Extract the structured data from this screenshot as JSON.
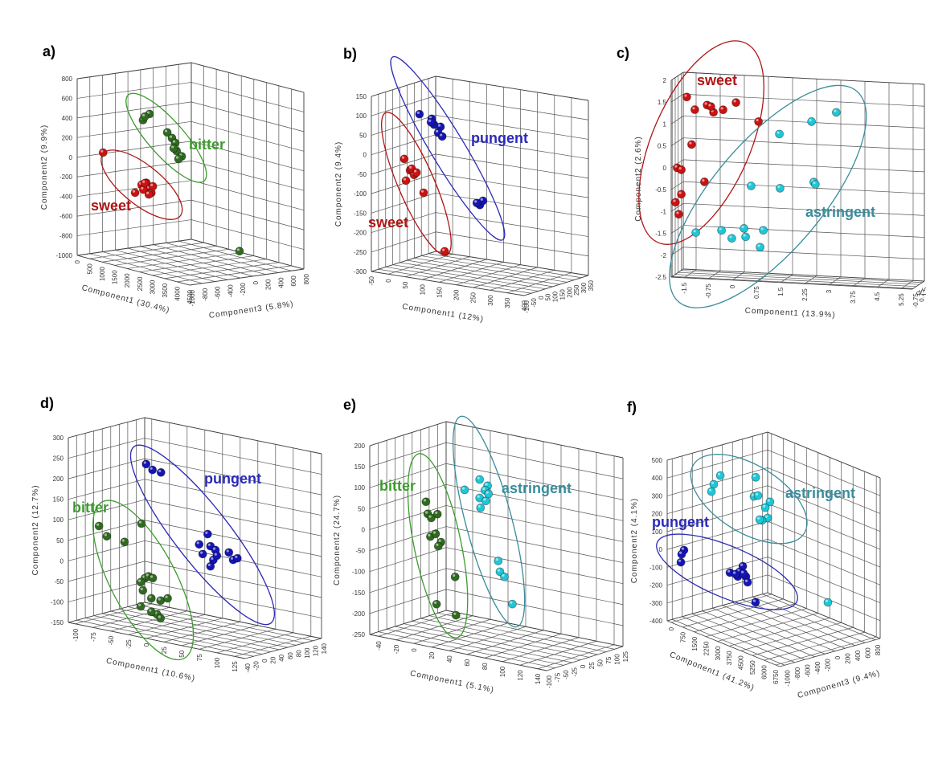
{
  "chart_data": [
    {
      "type": "scatter3d",
      "panel": "a)",
      "xlabel": "Component1 (30.4%)",
      "ylabel": "Component2 (9.9%)",
      "zlabel": "Component3 (5.8%)",
      "xlim": [
        0,
        4500
      ],
      "ylim": [
        -1000,
        800
      ],
      "zlim": [
        -1000,
        800
      ],
      "xticks": [
        0,
        500,
        1000,
        1500,
        2000,
        2500,
        3000,
        3500,
        4000,
        4500
      ],
      "yticks": [
        -1000,
        -800,
        -600,
        -400,
        -200,
        0,
        200,
        400,
        600,
        800
      ],
      "zticks": [
        -1000,
        -800,
        -600,
        -400,
        -200,
        0,
        200,
        400,
        600,
        800
      ],
      "series": [
        {
          "name": "bitter",
          "color": "#2f6b1f",
          "label_color": "#3d9b2e",
          "x": [
            350,
            610,
            420,
            1320,
            1510,
            1640,
            1700,
            1900,
            1770,
            1580,
            4210
          ],
          "y": [
            320,
            400,
            360,
            260,
            215,
            175,
            95,
            55,
            20,
            115,
            -755
          ],
          "z": [
            -100,
            -100,
            -100,
            -100,
            -100,
            -100,
            -100,
            -100,
            -100,
            -100,
            -100
          ]
        },
        {
          "name": "sweet",
          "color": "#cc1111",
          "label_color": "#b01515",
          "x": [
            580,
            1860,
            2120,
            2310,
            2440,
            2510,
            2190,
            2570,
            2410,
            2250
          ],
          "y": [
            70,
            -253,
            -154,
            -122,
            -172,
            -210,
            -199,
            -140,
            -233,
            -129
          ],
          "z": [
            -820,
            -820,
            -820,
            -820,
            -820,
            -820,
            -820,
            -820,
            -820,
            -820
          ]
        }
      ]
    },
    {
      "type": "scatter3d",
      "panel": "b)",
      "xlabel": "Component1 (12%)",
      "ylabel": "Component2 (9.4%)",
      "xlim": [
        -50,
        400
      ],
      "ylim": [
        -300,
        150
      ],
      "zlim": [
        -100,
        350
      ],
      "xticks": [
        -50,
        0,
        50,
        100,
        150,
        200,
        250,
        300,
        350,
        400
      ],
      "yticks": [
        -300,
        -250,
        -200,
        -150,
        -100,
        -50,
        0,
        50,
        100,
        150
      ],
      "zticks": [
        -100,
        -50,
        0,
        50,
        100,
        150,
        200,
        250,
        300,
        350
      ],
      "series": [
        {
          "name": "pungent",
          "color": "#1515b5",
          "label_color": "#2a2ab8",
          "x": [
            -3,
            33,
            40,
            59,
            31,
            52,
            64,
            175,
            184,
            166
          ],
          "y": [
            85,
            78,
            64,
            61,
            69,
            45,
            37,
            -124,
            -112,
            -120
          ],
          "z": [
            125,
            125,
            125,
            125,
            125,
            125,
            125,
            125,
            125,
            125
          ]
        },
        {
          "name": "sweet",
          "color": "#cc1111",
          "label_color": "#b01515",
          "x": [
            9,
            26,
            38,
            14,
            31,
            45,
            66,
            128
          ],
          "y": [
            -13,
            -40,
            -50,
            -68,
            -35,
            -43,
            -92,
            -234
          ],
          "z": [
            -10,
            -10,
            -10,
            -10,
            -10,
            -10,
            -10,
            -10
          ]
        }
      ]
    },
    {
      "type": "scatter3d",
      "panel": "c)",
      "xlabel": "Component1 (13.9%)",
      "ylabel": "Component2 (2.6%)",
      "xlim": [
        -1.9,
        5.6
      ],
      "ylim": [
        -2.5,
        2
      ],
      "zlim": [
        -1,
        2
      ],
      "xticks": [
        -1.5,
        -0.75,
        0,
        0.75,
        1.5,
        2.25,
        3,
        3.75,
        4.5,
        5.25
      ],
      "yticks": [
        -2.5,
        -2,
        -1.5,
        -1,
        -0.5,
        0,
        0.5,
        1,
        1.5,
        2
      ],
      "zticks": [
        -0.75,
        0,
        0.75,
        1.5
      ],
      "series": [
        {
          "name": "sweet",
          "color": "#cc1111",
          "label_color": "#b01515",
          "x": [
            -1.54,
            -1.29,
            -0.91,
            -0.71,
            -0.41,
            -0.01,
            -1.39,
            -1.84,
            -1.71,
            -0.99,
            -1.71,
            -1.89,
            -1.79,
            0.69,
            -0.79
          ],
          "y": [
            1.57,
            1.29,
            1.41,
            1.25,
            1.32,
            1.5,
            0.49,
            -0.06,
            -0.1,
            -0.35,
            -0.66,
            -0.85,
            -1.12,
            1.09,
            1.38
          ],
          "z": [
            0,
            0,
            0,
            0,
            0,
            0,
            0,
            0,
            0,
            0,
            0,
            0,
            0,
            0,
            0
          ]
        },
        {
          "name": "astringent",
          "color": "#1fc6d6",
          "label_color": "#3a8c9c",
          "x": [
            3.11,
            2.34,
            1.34,
            0.46,
            1.36,
            2.41,
            2.46,
            -1.26,
            -0.46,
            -0.14,
            0.24,
            0.29,
            0.84,
            0.74
          ],
          "y": [
            1.39,
            1.15,
            0.83,
            -0.39,
            -0.41,
            -0.23,
            -0.28,
            -1.52,
            -1.44,
            -1.61,
            -1.37,
            -1.56,
            -1.39,
            -1.78
          ],
          "z": [
            0,
            0,
            0,
            0,
            0,
            0,
            0,
            0,
            0,
            0,
            0,
            0,
            0,
            0
          ]
        }
      ]
    },
    {
      "type": "scatter3d",
      "panel": "d)",
      "xlabel": "Component1 (10.6%)",
      "ylabel": "Component2 (12.7%)",
      "xlim": [
        -110,
        140
      ],
      "ylim": [
        -150,
        300
      ],
      "zlim": [
        -40,
        140
      ],
      "xticks": [
        -100,
        -75,
        -50,
        -25,
        0,
        25,
        50,
        75,
        100,
        125
      ],
      "yticks": [
        -150,
        -100,
        -50,
        0,
        50,
        100,
        150,
        200,
        250,
        300
      ],
      "zticks": [
        -40,
        -20,
        0,
        20,
        40,
        60,
        80,
        100,
        120,
        140
      ],
      "series": [
        {
          "name": "pungent",
          "color": "#1515b5",
          "label_color": "#2a2ab8",
          "x": [
            -54,
            -45,
            -33,
            33,
            21,
            37,
            26,
            44,
            41,
            37,
            63,
            69,
            75,
            46
          ],
          "y": [
            231,
            220,
            218,
            91,
            62,
            63,
            40,
            56,
            31,
            14,
            57,
            41,
            47,
            43
          ],
          "z": [
            50,
            50,
            50,
            50,
            50,
            50,
            50,
            50,
            50,
            50,
            50,
            50,
            50,
            50
          ]
        },
        {
          "name": "bitter",
          "color": "#2f6b1f",
          "label_color": "#3d9b2e",
          "x": [
            -99,
            -88,
            -63,
            -39,
            -34,
            -29,
            -40,
            -23,
            -37,
            -25,
            -12,
            -2,
            -40,
            -17,
            -12,
            -25
          ],
          "y": [
            74,
            53,
            48,
            101,
            -30,
            -24,
            -42,
            -26,
            -61,
            -76,
            -77,
            -68,
            -101,
            -112,
            -120,
            -109
          ],
          "z": [
            14,
            14,
            14,
            14,
            14,
            14,
            14,
            14,
            14,
            14,
            14,
            14,
            14,
            14,
            14,
            14
          ]
        }
      ]
    },
    {
      "type": "scatter3d",
      "panel": "e)",
      "xlabel": "Component1 (5.1%)",
      "ylabel": "Component2 (24.7%)",
      "xlim": [
        -50,
        150
      ],
      "ylim": [
        -250,
        200
      ],
      "zlim": [
        -100,
        125
      ],
      "xticks": [
        -40,
        -20,
        0,
        20,
        40,
        60,
        80,
        100,
        120,
        140
      ],
      "yticks": [
        -250,
        -200,
        -150,
        -100,
        -50,
        0,
        50,
        100,
        150,
        200
      ],
      "zticks": [
        -100,
        -75,
        -50,
        -25,
        0,
        25,
        50,
        75,
        100,
        125
      ],
      "series": [
        {
          "name": "bitter",
          "color": "#2f6b1f",
          "label_color": "#3d9b2e",
          "x": [
            -21,
            -19,
            -15,
            -8,
            -16,
            -10,
            -4,
            -7,
            12,
            -9,
            13
          ],
          "y": [
            56,
            28,
            20,
            32,
            -25,
            -16,
            -33,
            -44,
            -109,
            -183,
            -200
          ],
          "z": [
            -10,
            -10,
            -10,
            -10,
            -10,
            -10,
            -10,
            -10,
            -10,
            -10,
            -10
          ]
        },
        {
          "name": "astringent",
          "color": "#1fc6d6",
          "label_color": "#3a8c9c",
          "x": [
            -3,
            14,
            23,
            20,
            14,
            21,
            15,
            24,
            35,
            37,
            42,
            51
          ],
          "y": [
            75,
            107,
            96,
            84,
            63,
            59,
            40,
            77,
            -78,
            -103,
            -113,
            -174
          ],
          "z": [
            57,
            57,
            57,
            57,
            57,
            57,
            57,
            57,
            57,
            57,
            57,
            57
          ]
        }
      ]
    },
    {
      "type": "scatter3d",
      "panel": "f)",
      "xlabel": "Component1 (41.2%)",
      "ylabel": "Component2 (4.1%)",
      "zlabel": "Component3 (9.4%)",
      "xlim": [
        -250,
        7000
      ],
      "ylim": [
        -400,
        500
      ],
      "zlim": [
        -1100,
        900
      ],
      "xticks": [
        0,
        750,
        1500,
        2250,
        3000,
        3750,
        4500,
        5250,
        6000,
        6750
      ],
      "yticks": [
        -400,
        -300,
        -200,
        -100,
        0,
        100,
        200,
        300,
        400,
        500
      ],
      "zticks": [
        -1000,
        -800,
        -600,
        -400,
        -200,
        0,
        200,
        400,
        600,
        800
      ],
      "series": [
        {
          "name": "astringent",
          "color": "#1fc6d6",
          "label_color": "#3a8c9c",
          "x": [
            3510,
            1230,
            810,
            660,
            3400,
            3660,
            4430,
            4130,
            4280,
            3920,
            3770,
            4280
          ],
          "y": [
            490,
            419,
            355,
            309,
            379,
            393,
            385,
            342,
            289,
            263,
            262,
            -278
          ],
          "z": [
            -500,
            -500,
            -500,
            -500,
            -500,
            -500,
            -500,
            -500,
            -500,
            -500,
            -500,
            700
          ]
        },
        {
          "name": "pungent",
          "color": "#1515b5",
          "label_color": "#2a2ab8",
          "x": [
            510,
            360,
            310,
            3470,
            3980,
            4300,
            4090,
            4500,
            4610,
            4350,
            3830,
            5120
          ],
          "y": [
            15,
            -13,
            -60,
            -6,
            -10,
            59,
            20,
            8,
            -20,
            20,
            -2,
            -114
          ],
          "z": [
            -1000,
            -1000,
            -1000,
            -1000,
            -1000,
            -1000,
            -1000,
            -1000,
            -1000,
            -1000,
            -1000,
            -1000
          ]
        }
      ]
    }
  ]
}
